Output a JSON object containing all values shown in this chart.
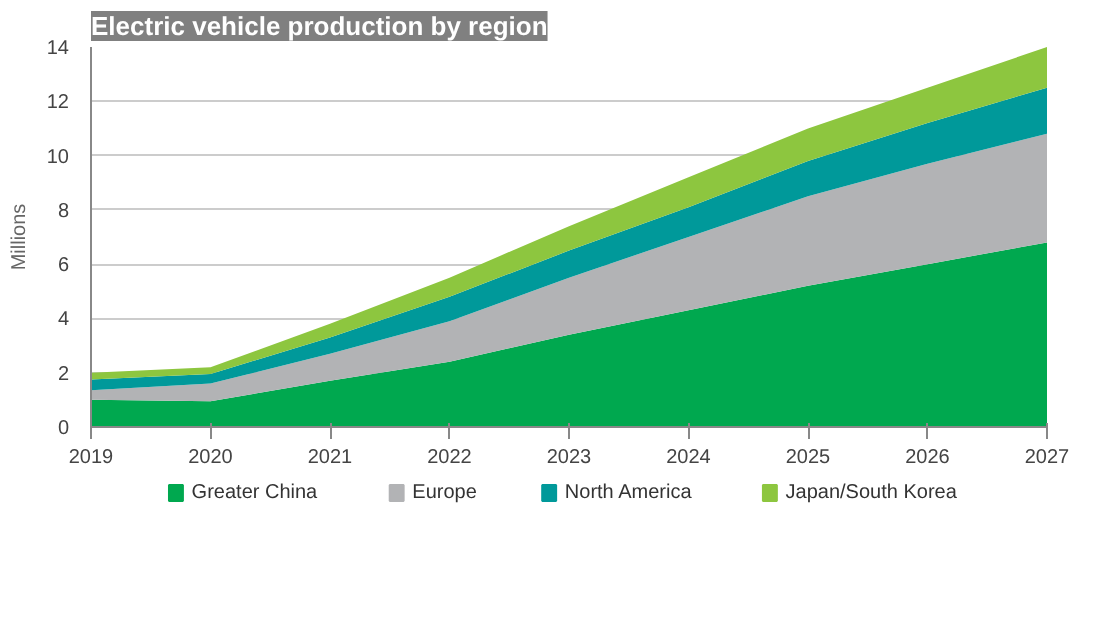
{
  "chart_data": {
    "type": "area",
    "stacked": true,
    "title": "Electric vehicle production by region",
    "ylabel": "Millions",
    "x": [
      2019,
      2020,
      2021,
      2022,
      2023,
      2024,
      2025,
      2026,
      2027
    ],
    "series": [
      {
        "name": "Greater China",
        "color": "#00a84f",
        "values": [
          1.0,
          0.95,
          1.7,
          2.4,
          3.4,
          4.3,
          5.2,
          6.0,
          6.8
        ]
      },
      {
        "name": "Europe",
        "color": "#b2b3b5",
        "values": [
          0.35,
          0.65,
          1.0,
          1.5,
          2.1,
          2.7,
          3.3,
          3.7,
          4.0
        ]
      },
      {
        "name": "North America",
        "color": "#00999a",
        "values": [
          0.4,
          0.35,
          0.6,
          0.9,
          1.0,
          1.1,
          1.3,
          1.5,
          1.7
        ]
      },
      {
        "name": "Japan/South Korea",
        "color": "#8dc63f",
        "values": [
          0.25,
          0.25,
          0.5,
          0.7,
          0.9,
          1.1,
          1.2,
          1.3,
          1.5
        ]
      }
    ],
    "xlim": [
      2019,
      2027
    ],
    "xticks": [
      2019,
      2020,
      2021,
      2022,
      2023,
      2024,
      2025,
      2026,
      2027
    ],
    "ylim": [
      0,
      14
    ],
    "yticks": [
      0,
      2,
      4,
      6,
      8,
      10,
      12,
      14
    ],
    "grid": "y",
    "legend": "bottom"
  }
}
